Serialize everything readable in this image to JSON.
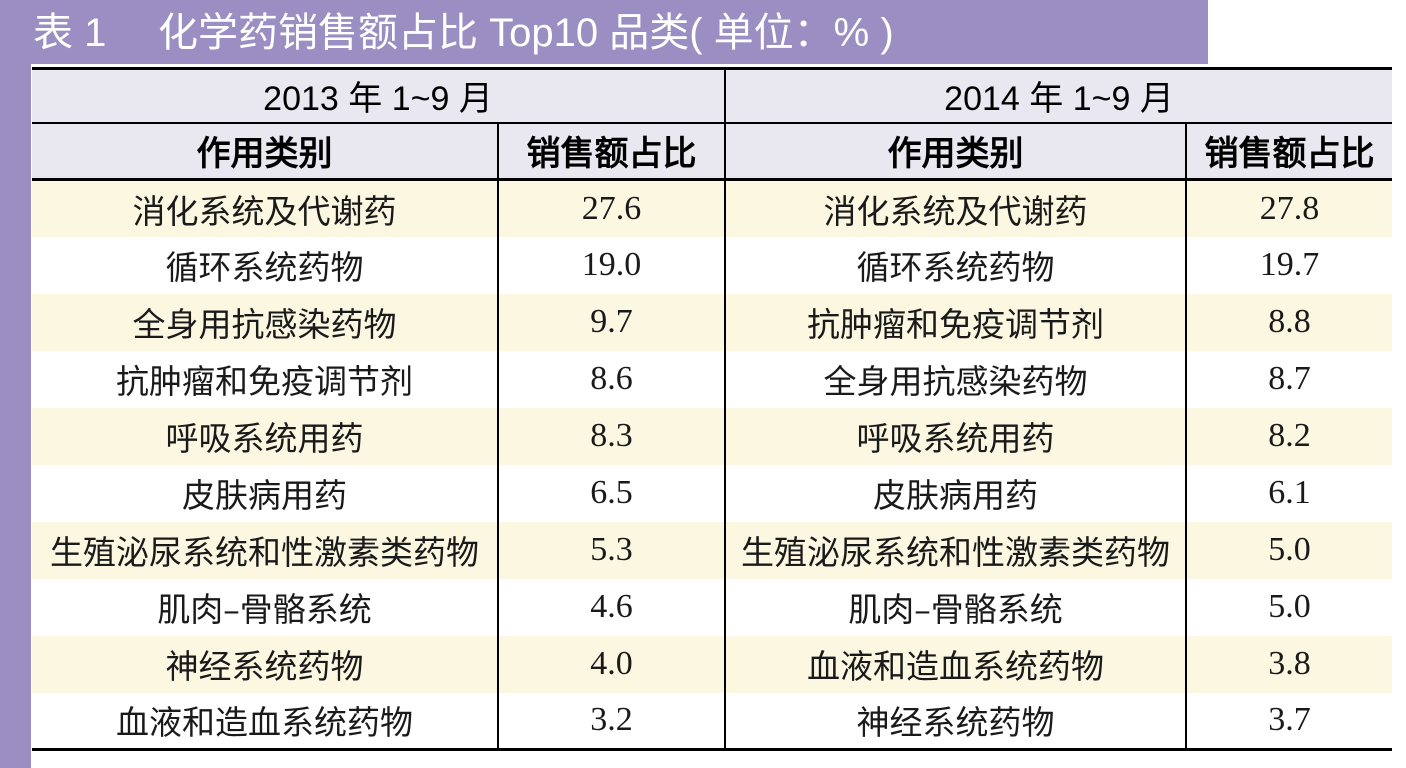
{
  "colors": {
    "accent": "#9a8ec2",
    "header_bg": "#e9e7f0",
    "stripe_bg": "#fbf7e1",
    "rule": "#000000"
  },
  "chart_data": {
    "type": "table",
    "table_number": "表 1",
    "title": "化学药销售额占比 Top10 品类( 单位：% )",
    "groups": [
      {
        "period": "2013 年 1~9 月",
        "columns": [
          "作用类别",
          "销售额占比"
        ],
        "rows": [
          {
            "category": "消化系统及代谢药",
            "share": 27.6
          },
          {
            "category": "循环系统药物",
            "share": 19.0
          },
          {
            "category": "全身用抗感染药物",
            "share": 9.7
          },
          {
            "category": "抗肿瘤和免疫调节剂",
            "share": 8.6
          },
          {
            "category": "呼吸系统用药",
            "share": 8.3
          },
          {
            "category": "皮肤病用药",
            "share": 6.5
          },
          {
            "category": "生殖泌尿系统和性激素类药物",
            "share": 5.3
          },
          {
            "category": "肌肉–骨骼系统",
            "share": 4.6
          },
          {
            "category": "神经系统药物",
            "share": 4.0
          },
          {
            "category": "血液和造血系统药物",
            "share": 3.2
          }
        ]
      },
      {
        "period": "2014 年 1~9 月",
        "columns": [
          "作用类别",
          "销售额占比"
        ],
        "rows": [
          {
            "category": "消化系统及代谢药",
            "share": 27.8
          },
          {
            "category": "循环系统药物",
            "share": 19.7
          },
          {
            "category": "抗肿瘤和免疫调节剂",
            "share": 8.8
          },
          {
            "category": "全身用抗感染药物",
            "share": 8.7
          },
          {
            "category": "呼吸系统用药",
            "share": 8.2
          },
          {
            "category": "皮肤病用药",
            "share": 6.1
          },
          {
            "category": "生殖泌尿系统和性激素类药物",
            "share": 5.0
          },
          {
            "category": "肌肉–骨骼系统",
            "share": 5.0
          },
          {
            "category": "血液和造血系统药物",
            "share": 3.8
          },
          {
            "category": "神经系统药物",
            "share": 3.7
          }
        ]
      }
    ]
  }
}
